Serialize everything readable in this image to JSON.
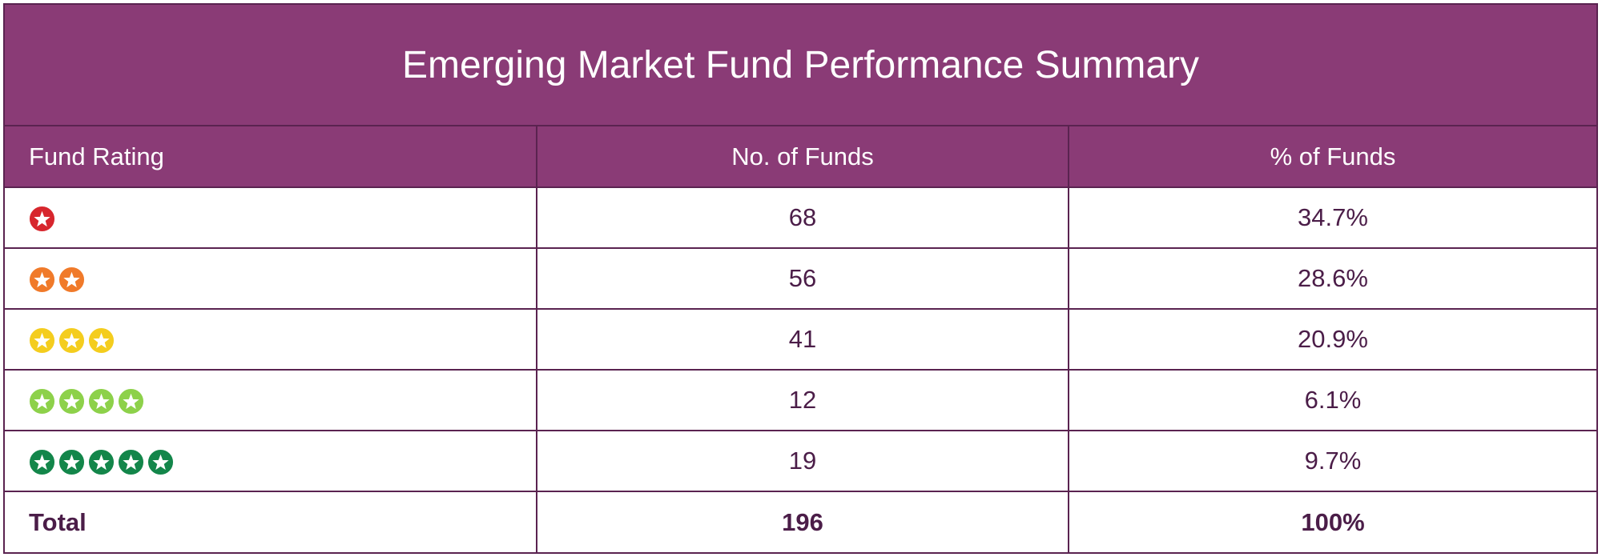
{
  "title": "Emerging Market Fund Performance Summary",
  "chart_data": {
    "type": "table",
    "title": "Emerging Market Fund Performance Summary",
    "columns": [
      "Fund Rating",
      "No. of Funds",
      "% of Funds"
    ],
    "rows": [
      {
        "rating": 1,
        "star_color": "#d7262d",
        "count": "68",
        "percent": "34.7%"
      },
      {
        "rating": 2,
        "star_color": "#f07a2a",
        "count": "56",
        "percent": "28.6%"
      },
      {
        "rating": 3,
        "star_color": "#f4cd1e",
        "count": "41",
        "percent": "20.9%"
      },
      {
        "rating": 4,
        "star_color": "#8dd14a",
        "count": "12",
        "percent": "6.1%"
      },
      {
        "rating": 5,
        "star_color": "#13864a",
        "count": "19",
        "percent": "9.7%"
      }
    ],
    "total": {
      "label": "Total",
      "count": "196",
      "percent": "100%"
    }
  },
  "colors": {
    "header_bg": "#8a3b76",
    "border": "#5a2350",
    "text": "#4b1d48"
  },
  "icon": "star-icon"
}
